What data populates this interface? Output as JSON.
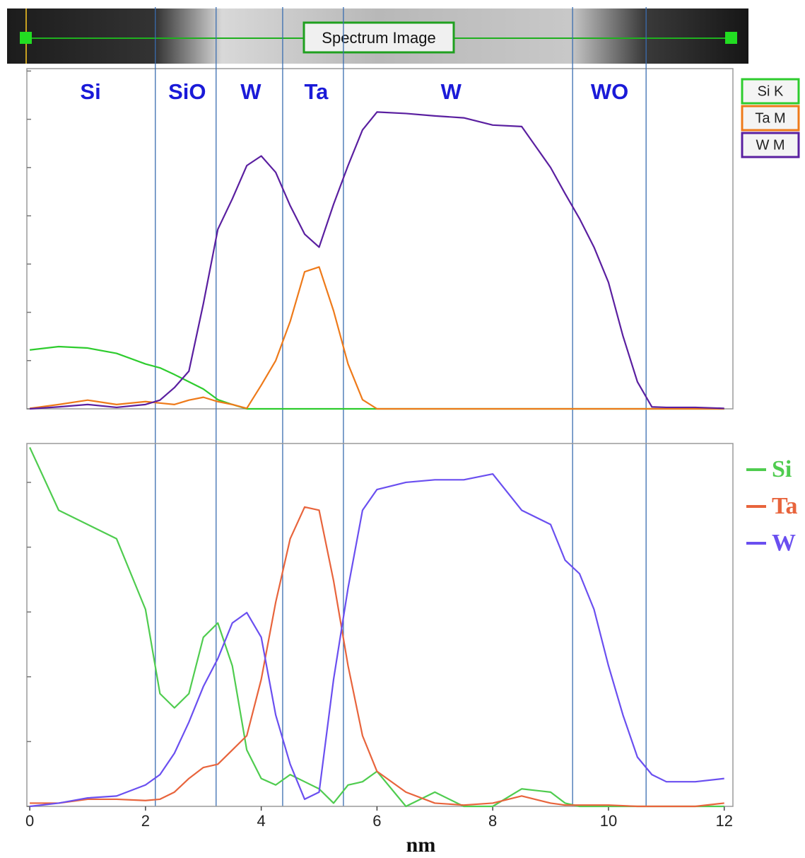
{
  "spectrum_image_label": "Spectrum Image",
  "chart_data": [
    {
      "type": "line",
      "x": [
        0,
        0.5,
        1,
        1.5,
        2,
        2.25,
        2.5,
        2.75,
        3,
        3.25,
        3.5,
        3.75,
        4,
        4.25,
        4.5,
        4.75,
        5,
        5.25,
        5.5,
        5.75,
        6,
        6.5,
        7,
        7.5,
        8,
        8.5,
        9,
        9.25,
        9.5,
        9.75,
        10,
        10.25,
        10.5,
        10.75,
        11,
        11.5,
        12
      ],
      "xlim": [
        -0.05,
        12.15
      ],
      "ylim": [
        0,
        7.05
      ],
      "yticks": [
        0,
        1,
        2,
        3,
        4,
        5,
        6,
        7
      ],
      "region_boundaries": [
        2.17,
        3.22,
        4.37,
        5.42,
        9.38,
        10.65
      ],
      "annotations": [
        {
          "text": "Si",
          "x": 1.05
        },
        {
          "text": "SiO",
          "x": 2.72
        },
        {
          "text": "W",
          "x": 3.82
        },
        {
          "text": "Ta",
          "x": 4.95
        },
        {
          "text": "W",
          "x": 7.28
        },
        {
          "text": "WO",
          "x": 10.02
        }
      ],
      "series": [
        {
          "name": "Si K",
          "color": "#2ecc2e",
          "values": [
            1.22,
            1.29,
            1.26,
            1.15,
            0.93,
            0.85,
            0.71,
            0.56,
            0.41,
            0.19,
            0.09,
            0,
            0,
            0,
            0,
            0,
            0,
            0,
            0,
            0,
            0,
            0,
            0,
            0,
            0,
            0,
            0,
            0,
            0,
            0,
            0,
            0,
            0,
            0,
            0,
            0,
            0
          ]
        },
        {
          "name": "Ta M",
          "color": "#ee7a1a",
          "values": [
            0.01,
            0.09,
            0.18,
            0.09,
            0.15,
            0.12,
            0.09,
            0.18,
            0.24,
            0.15,
            0.09,
            0.01,
            0.49,
            1.0,
            1.81,
            2.84,
            2.94,
            2.03,
            0.93,
            0.19,
            0,
            0,
            0,
            0,
            0,
            0,
            0,
            0,
            0,
            0,
            0,
            0,
            0,
            0,
            0,
            0,
            0
          ]
        },
        {
          "name": "W M",
          "color": "#5a1fa0",
          "values": [
            0,
            0.04,
            0.09,
            0.03,
            0.09,
            0.18,
            0.44,
            0.78,
            2.18,
            3.72,
            4.35,
            5.04,
            5.24,
            4.9,
            4.21,
            3.62,
            3.35,
            4.24,
            5.04,
            5.78,
            6.15,
            6.12,
            6.07,
            6.03,
            5.88,
            5.85,
            5.0,
            4.46,
            3.94,
            3.35,
            2.62,
            1.51,
            0.56,
            0.04,
            0.03,
            0.03,
            0.01
          ]
        }
      ]
    },
    {
      "type": "line",
      "xlabel": "nm",
      "x": [
        0,
        0.5,
        1,
        1.5,
        2,
        2.25,
        2.5,
        2.75,
        3,
        3.25,
        3.5,
        3.75,
        4,
        4.25,
        4.5,
        4.75,
        5,
        5.25,
        5.5,
        5.75,
        6,
        6.5,
        7,
        7.5,
        8,
        8.5,
        9,
        9.25,
        9.5,
        9.75,
        10,
        10.25,
        10.5,
        10.75,
        11,
        11.5,
        12
      ],
      "xlim": [
        -0.05,
        12.15
      ],
      "xticks": [
        0,
        2,
        4,
        6,
        8,
        10,
        12
      ],
      "ylim": [
        0,
        5.6
      ],
      "yticks": [
        0,
        1,
        2,
        3,
        4,
        5
      ],
      "series": [
        {
          "name": "Si",
          "color": "#4fcc4f",
          "values": [
            5.54,
            4.57,
            4.35,
            4.13,
            3.04,
            1.74,
            1.52,
            1.74,
            2.61,
            2.83,
            2.17,
            0.87,
            0.43,
            0.33,
            0.49,
            0.38,
            0.27,
            0.05,
            0.33,
            0.38,
            0.54,
            0,
            0.22,
            0,
            0,
            0.27,
            0.22,
            0.05,
            0,
            0,
            0,
            0,
            0,
            0,
            0,
            0,
            0
          ]
        },
        {
          "name": "Ta",
          "color": "#e8643c",
          "values": [
            0.05,
            0.05,
            0.11,
            0.11,
            0.09,
            0.11,
            0.22,
            0.43,
            0.6,
            0.65,
            0.87,
            1.09,
            1.96,
            3.15,
            4.13,
            4.62,
            4.57,
            3.48,
            2.17,
            1.09,
            0.54,
            0.22,
            0.05,
            0.02,
            0.05,
            0.16,
            0.05,
            0.02,
            0.02,
            0.02,
            0.02,
            0.01,
            0,
            0,
            0,
            0,
            0.05
          ]
        },
        {
          "name": "W",
          "color": "#6a4ff0",
          "values": [
            0,
            0.05,
            0.13,
            0.16,
            0.33,
            0.49,
            0.82,
            1.3,
            1.85,
            2.28,
            2.83,
            2.99,
            2.61,
            1.41,
            0.65,
            0.11,
            0.22,
            1.96,
            3.37,
            4.57,
            4.89,
            5.0,
            5.04,
            5.04,
            5.13,
            4.57,
            4.35,
            3.8,
            3.59,
            3.04,
            2.17,
            1.41,
            0.76,
            0.49,
            0.38,
            0.38,
            0.43
          ]
        }
      ]
    }
  ]
}
